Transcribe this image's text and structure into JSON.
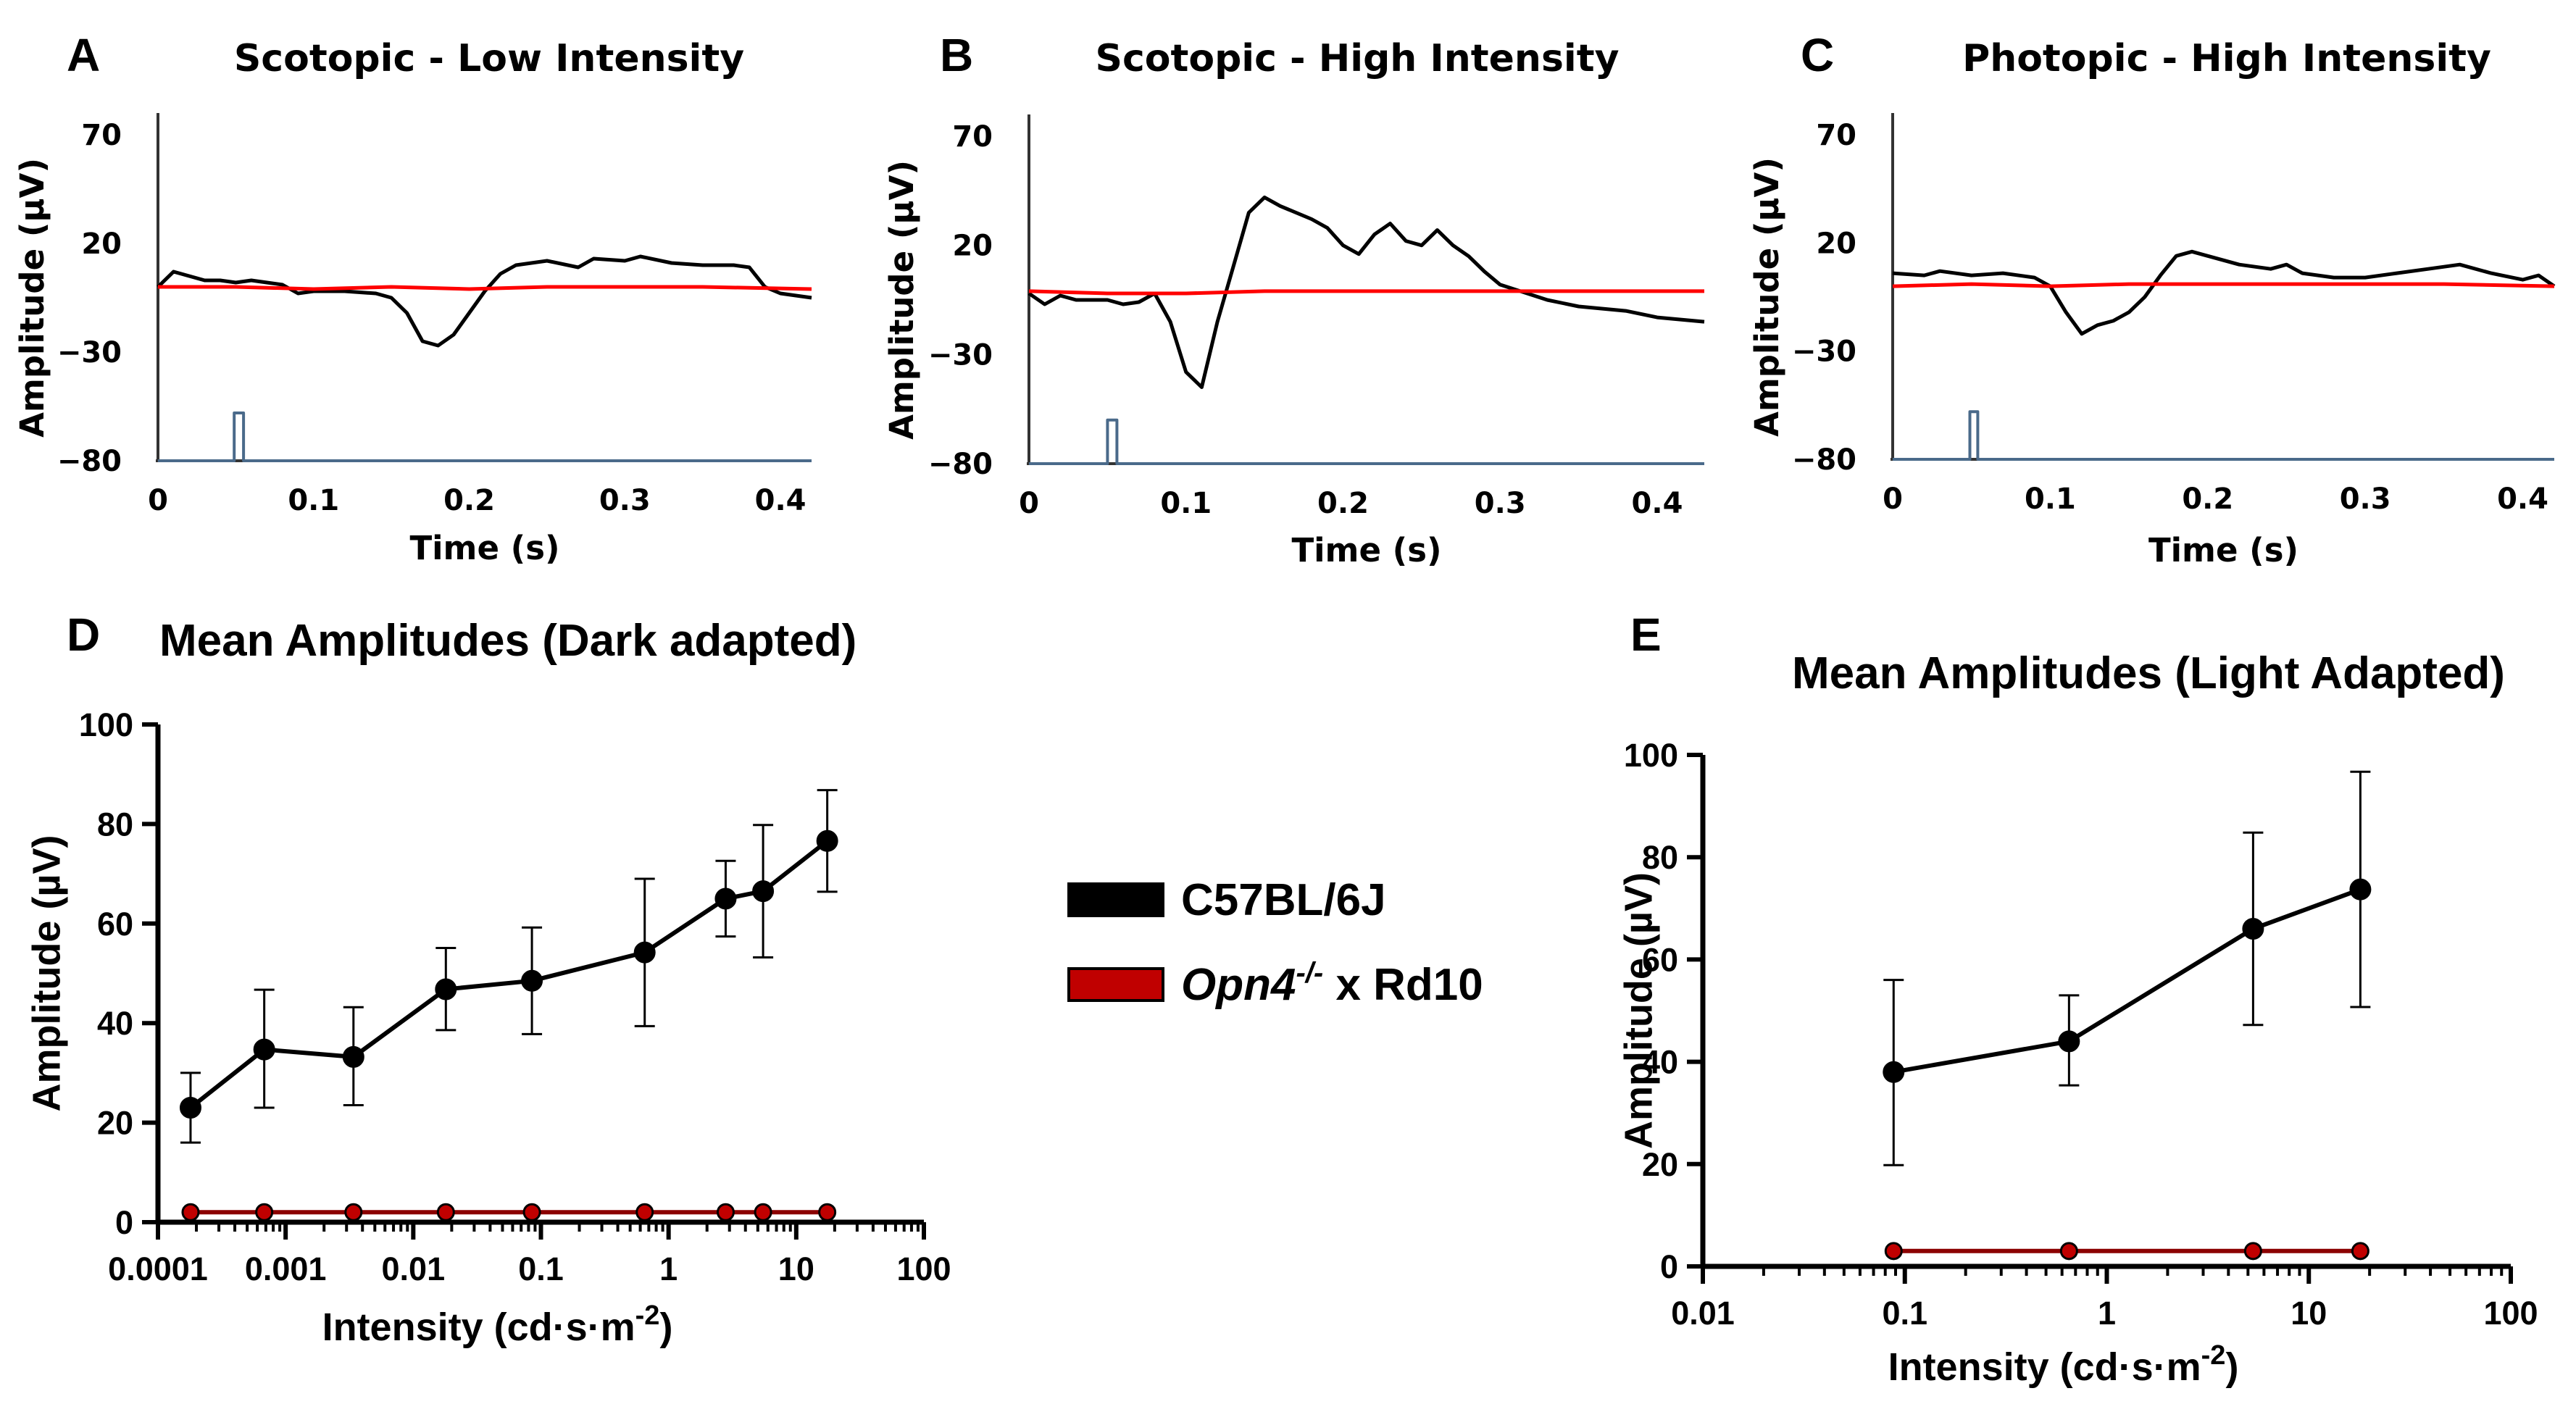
{
  "legend": {
    "entries": [
      {
        "label": "C57BL/6J",
        "color": "#000000"
      },
      {
        "label_italic": "Opn4",
        "label_sup": "-/-",
        "label_rest": " x Rd10",
        "color": "#c00000"
      }
    ]
  },
  "chart_data": [
    {
      "panel": "A",
      "type": "line",
      "title": "Scotopic - Low Intensity",
      "xlabel": "Time (s)",
      "ylabel": "Amplitude (µV)",
      "xlim": [
        0,
        0.42
      ],
      "ylim": [
        -80,
        70
      ],
      "xticks": [
        0,
        0.1,
        0.2,
        0.3,
        0.4
      ],
      "xtick_labels": [
        "0",
        "0.1",
        "0.2",
        "0.3",
        "0.4"
      ],
      "yticks": [
        70,
        20,
        -30,
        -80
      ],
      "ytick_labels": [
        "70",
        "20",
        "−30",
        "−80"
      ],
      "series": [
        {
          "name": "C57BL/6J",
          "color": "#000000",
          "x": [
            0,
            0.01,
            0.02,
            0.03,
            0.04,
            0.05,
            0.06,
            0.07,
            0.08,
            0.09,
            0.1,
            0.12,
            0.14,
            0.15,
            0.16,
            0.17,
            0.18,
            0.19,
            0.2,
            0.21,
            0.22,
            0.23,
            0.24,
            0.25,
            0.27,
            0.28,
            0.3,
            0.31,
            0.33,
            0.35,
            0.37,
            0.38,
            0.39,
            0.4,
            0.42
          ],
          "y": [
            0,
            7,
            5,
            3,
            3,
            2,
            3,
            2,
            1,
            -3,
            -2,
            -2,
            -3,
            -5,
            -12,
            -25,
            -27,
            -22,
            -12,
            -2,
            6,
            10,
            11,
            12,
            9,
            13,
            12,
            14,
            11,
            10,
            10,
            9,
            0,
            -3,
            -5
          ]
        },
        {
          "name": "Opn4-/- x Rd10",
          "color": "#ff0000",
          "x": [
            0,
            0.05,
            0.1,
            0.15,
            0.2,
            0.25,
            0.3,
            0.35,
            0.42
          ],
          "y": [
            0,
            0,
            -1,
            0,
            -1,
            0,
            0,
            0,
            -1
          ]
        },
        {
          "name": "stimulus",
          "color": "#4a6a8a",
          "x": [
            0,
            0.049,
            0.049,
            0.055,
            0.055,
            0.42
          ],
          "y": [
            -80,
            -80,
            -58,
            -58,
            -80,
            -80
          ]
        }
      ]
    },
    {
      "panel": "B",
      "type": "line",
      "title": "Scotopic - High Intensity",
      "xlabel": "Time (s)",
      "ylabel": "Amplitude (µV)",
      "xlim": [
        0,
        0.43
      ],
      "ylim": [
        -80,
        70
      ],
      "xticks": [
        0,
        0.1,
        0.2,
        0.3,
        0.4
      ],
      "xtick_labels": [
        "0",
        "0.1",
        "0.2",
        "0.3",
        "0.4"
      ],
      "yticks": [
        70,
        20,
        -30,
        -80
      ],
      "ytick_labels": [
        "70",
        "20",
        "−30",
        "−80"
      ],
      "series": [
        {
          "name": "C57BL/6J",
          "color": "#000000",
          "x": [
            0,
            0.01,
            0.02,
            0.03,
            0.05,
            0.06,
            0.07,
            0.08,
            0.09,
            0.1,
            0.11,
            0.12,
            0.13,
            0.14,
            0.15,
            0.16,
            0.18,
            0.19,
            0.2,
            0.21,
            0.22,
            0.23,
            0.24,
            0.25,
            0.26,
            0.27,
            0.28,
            0.29,
            0.3,
            0.33,
            0.35,
            0.38,
            0.4,
            0.43
          ],
          "y": [
            -2,
            -7,
            -3,
            -5,
            -5,
            -7,
            -6,
            -2,
            -15,
            -38,
            -45,
            -15,
            10,
            35,
            42,
            38,
            32,
            28,
            20,
            16,
            25,
            30,
            22,
            20,
            27,
            20,
            15,
            8,
            2,
            -5,
            -8,
            -10,
            -13,
            -15
          ]
        },
        {
          "name": "Opn4-/- x Rd10",
          "color": "#ff0000",
          "x": [
            0,
            0.05,
            0.1,
            0.15,
            0.2,
            0.25,
            0.3,
            0.35,
            0.43
          ],
          "y": [
            -1,
            -2,
            -2,
            -1,
            -1,
            -1,
            -1,
            -1,
            -1
          ]
        },
        {
          "name": "stimulus",
          "color": "#4a6a8a",
          "x": [
            0,
            0.05,
            0.05,
            0.056,
            0.056,
            0.43
          ],
          "y": [
            -80,
            -80,
            -60,
            -60,
            -80,
            -80
          ]
        }
      ]
    },
    {
      "panel": "C",
      "type": "line",
      "title": "Photopic - High Intensity",
      "xlabel": "Time (s)",
      "ylabel": "Amplitude (µV)",
      "xlim": [
        0,
        0.42
      ],
      "ylim": [
        -80,
        70
      ],
      "xticks": [
        0,
        0.1,
        0.2,
        0.3,
        0.4
      ],
      "xtick_labels": [
        "0",
        "0.1",
        "0.2",
        "0.3",
        "0.4"
      ],
      "yticks": [
        70,
        20,
        -30,
        -80
      ],
      "ytick_labels": [
        "70",
        "20",
        "−30",
        "−80"
      ],
      "series": [
        {
          "name": "C57BL/6J",
          "color": "#000000",
          "x": [
            0,
            0.02,
            0.03,
            0.05,
            0.07,
            0.09,
            0.1,
            0.11,
            0.12,
            0.13,
            0.14,
            0.15,
            0.16,
            0.17,
            0.18,
            0.19,
            0.2,
            0.22,
            0.24,
            0.25,
            0.26,
            0.28,
            0.3,
            0.32,
            0.34,
            0.36,
            0.38,
            0.4,
            0.41,
            0.42
          ],
          "y": [
            6,
            5,
            7,
            5,
            6,
            4,
            0,
            -12,
            -22,
            -18,
            -16,
            -12,
            -5,
            5,
            14,
            16,
            14,
            10,
            8,
            10,
            6,
            4,
            4,
            6,
            8,
            10,
            6,
            3,
            5,
            0
          ]
        },
        {
          "name": "Opn4-/- x Rd10",
          "color": "#ff0000",
          "x": [
            0,
            0.05,
            0.1,
            0.15,
            0.2,
            0.25,
            0.3,
            0.35,
            0.42
          ],
          "y": [
            0,
            1,
            0,
            1,
            1,
            1,
            1,
            1,
            0
          ]
        },
        {
          "name": "stimulus",
          "color": "#4a6a8a",
          "x": [
            0,
            0.049,
            0.049,
            0.054,
            0.054,
            0.42
          ],
          "y": [
            -80,
            -80,
            -58,
            -58,
            -80,
            -80
          ]
        }
      ]
    },
    {
      "panel": "D",
      "type": "line",
      "title": "Mean Amplitudes (Dark adapted)",
      "xscale": "log",
      "xlabel_main": "Intensity (cd·s·m",
      "xlabel_sup": "-2",
      "xlabel_end": ")",
      "ylabel": "Amplitude (µV)",
      "xlim": [
        0.0001,
        100
      ],
      "ylim": [
        0,
        100
      ],
      "xticks": [
        0.0001,
        0.001,
        0.01,
        0.1,
        1,
        10,
        100
      ],
      "xtick_labels": [
        "0.0001",
        "0.001",
        "0.01",
        "0.1",
        "1",
        "10",
        "100"
      ],
      "yticks": [
        0,
        20,
        40,
        60,
        80,
        100
      ],
      "ytick_labels": [
        "0",
        "20",
        "40",
        "60",
        "80",
        "100"
      ],
      "series": [
        {
          "name": "C57BL/6J",
          "color": "#000000",
          "x": [
            0.00018,
            0.00068,
            0.0034,
            0.018,
            0.085,
            0.65,
            2.8,
            5.5,
            17.5
          ],
          "values": [
            23,
            34.7,
            33.2,
            46.8,
            48.5,
            54.2,
            65,
            66.5,
            76.6
          ],
          "err_up": [
            7,
            12,
            10,
            8.3,
            10.7,
            14.8,
            7.6,
            13.3,
            10.2
          ],
          "err_down": [
            7,
            11.7,
            9.7,
            8.2,
            10.7,
            14.8,
            7.6,
            13.3,
            10.2
          ]
        },
        {
          "name": "Opn4-/- x Rd10",
          "color": "#c00000",
          "x": [
            0.00018,
            0.00068,
            0.0034,
            0.018,
            0.085,
            0.65,
            2.8,
            5.5,
            17.5
          ],
          "values": [
            2,
            2,
            2,
            2,
            2,
            2,
            2,
            2,
            2
          ]
        }
      ]
    },
    {
      "panel": "E",
      "type": "line",
      "title": "Mean Amplitudes (Light Adapted)",
      "xscale": "log",
      "xlabel_main": "Intensity (cd·s·m",
      "xlabel_sup": "-2",
      "xlabel_end": ")",
      "ylabel": "Amplitude (µV)",
      "xlim": [
        0.01,
        100
      ],
      "ylim": [
        0,
        100
      ],
      "xticks": [
        0.01,
        0.1,
        1,
        10,
        100
      ],
      "xtick_labels": [
        "0.01",
        "0.1",
        "1",
        "10",
        "100"
      ],
      "yticks": [
        0,
        20,
        40,
        60,
        80,
        100
      ],
      "ytick_labels": [
        "0",
        "20",
        "40",
        "60",
        "80",
        "100"
      ],
      "series": [
        {
          "name": "C57BL/6J",
          "color": "#000000",
          "x": [
            0.088,
            0.65,
            5.3,
            18
          ],
          "values": [
            38,
            44,
            66,
            73.7
          ],
          "err_up": [
            18,
            9,
            18.8,
            23
          ],
          "err_down": [
            18.2,
            8.6,
            18.8,
            23
          ]
        },
        {
          "name": "Opn4-/- x Rd10",
          "color": "#c00000",
          "x": [
            0.088,
            0.65,
            5.3,
            18
          ],
          "values": [
            3,
            3,
            3,
            3
          ]
        }
      ]
    }
  ]
}
